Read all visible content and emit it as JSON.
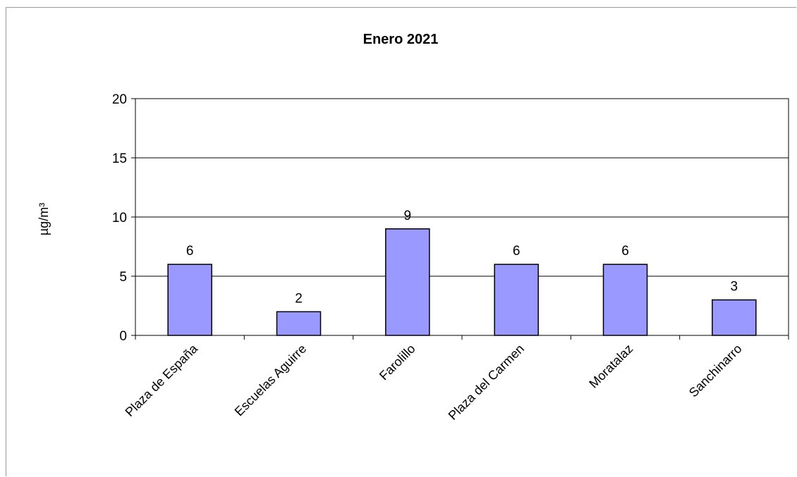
{
  "chart_data": {
    "type": "bar",
    "title": "Enero 2021",
    "ylabel": "µg/m³",
    "xlabel": "",
    "categories": [
      "Plaza de España",
      "Escuelas Aguirre",
      "Farolillo",
      "Plaza del Carmen",
      "Moratalaz",
      "Sanchinarro"
    ],
    "values": [
      6,
      2,
      9,
      6,
      6,
      3
    ],
    "data_labels": [
      "6",
      "2",
      "9",
      "6",
      "6",
      "3"
    ],
    "ylim": [
      0,
      20
    ],
    "yticks": [
      0,
      5,
      10,
      15,
      20
    ],
    "ytick_labels": [
      "0",
      "5",
      "10",
      "15",
      "20"
    ],
    "grid": true,
    "legend": "none",
    "colors": {
      "bar_fill": "#9999ff",
      "bar_stroke": "#000000",
      "gridline": "#000000"
    }
  }
}
